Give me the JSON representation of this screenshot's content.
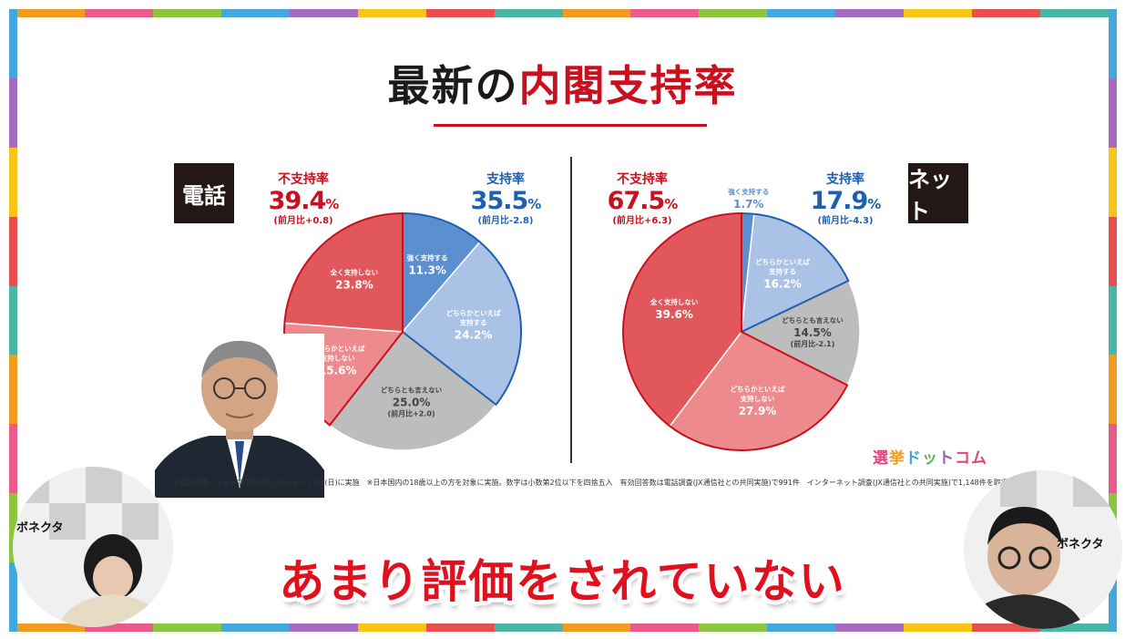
{
  "title": {
    "part1": "最新の",
    "part2": "内閣支持率"
  },
  "colors": {
    "red": "#c8101e",
    "blue": "#1f5fb0",
    "slice_blue_dark": "#5b8fcf",
    "slice_blue_light": "#a9c2e6",
    "slice_gray": "#bdbdbd",
    "slice_red_light": "#ec8a8e",
    "slice_red_dark": "#e2575c",
    "stripes": [
      "#f29c1f",
      "#e85b8a",
      "#8cc63f",
      "#45a8dd",
      "#a66bbf",
      "#f5c518",
      "#e8504f",
      "#4bb6a6"
    ]
  },
  "phone": {
    "badge": "電話",
    "disapprove": {
      "label": "不支持率",
      "value": "39.4",
      "unit": "%",
      "change": "(前月比+0.8)"
    },
    "approve": {
      "label": "支持率",
      "value": "35.5",
      "unit": "%",
      "change": "(前月比-2.8)"
    },
    "slice_labels": [
      {
        "line1": "強く支持する",
        "line2": "",
        "value": "11.3",
        "unit": "%",
        "change": ""
      },
      {
        "line1": "どちらかといえば",
        "line2": "支持する",
        "value": "24.2",
        "unit": "%",
        "change": ""
      },
      {
        "line1": "どちらとも言えない",
        "line2": "",
        "value": "25.0",
        "unit": "%",
        "change": "(前月比+2.0)"
      },
      {
        "line1": "どちらかといえば",
        "line2": "支持しない",
        "value": "15.6",
        "unit": "%",
        "change": ""
      },
      {
        "line1": "全く支持しない",
        "line2": "",
        "value": "23.8",
        "unit": "%",
        "change": ""
      }
    ]
  },
  "net": {
    "badge": "ネット",
    "disapprove": {
      "label": "不支持率",
      "value": "67.5",
      "unit": "%",
      "change": "(前月比+6.3)"
    },
    "approve": {
      "label": "支持率",
      "value": "17.9",
      "unit": "%",
      "change": "(前月比-4.3)"
    },
    "slice_labels": [
      {
        "line1": "強く支持する",
        "line2": "",
        "value": "1.7",
        "unit": "%",
        "change": ""
      },
      {
        "line1": "どちらかといえば",
        "line2": "支持する",
        "value": "16.2",
        "unit": "%",
        "change": ""
      },
      {
        "line1": "どちらとも言えない",
        "line2": "",
        "value": "14.5",
        "unit": "%",
        "change": "(前月比-2.1)"
      },
      {
        "line1": "どちらかといえば",
        "line2": "支持しない",
        "value": "27.9",
        "unit": "%",
        "change": ""
      },
      {
        "line1": "全く支持しない",
        "line2": "",
        "value": "39.6",
        "unit": "%",
        "change": ""
      }
    ]
  },
  "chart_data": [
    {
      "type": "pie",
      "title": "電話",
      "categories": [
        "強く支持する",
        "どちらかといえば支持する",
        "どちらとも言えない",
        "どちらかといえば支持しない",
        "全く支持しない"
      ],
      "values": [
        11.3,
        24.2,
        25.0,
        15.6,
        23.8
      ],
      "colors": [
        "#5b8fcf",
        "#a9c2e6",
        "#bdbdbd",
        "#ec8a8e",
        "#e2575c"
      ]
    },
    {
      "type": "pie",
      "title": "ネット",
      "categories": [
        "強く支持する",
        "どちらかといえば支持する",
        "どちらとも言えない",
        "どちらかといえば支持しない",
        "全く支持しない"
      ],
      "values": [
        1.7,
        16.2,
        14.5,
        27.9,
        39.6
      ],
      "colors": [
        "#5b8fcf",
        "#a9c2e6",
        "#bdbdbd",
        "#ec8a8e",
        "#e2575c"
      ]
    }
  ],
  "note": "※電話調査、ネット調査は7月12日(土)・13日(日)に実施　※日本国内の18歳以上の方を対象に実施。数字は小数第2位以下を四捨五入　有効回答数は電話調査(JX通信社との共同実施)で991件　インターネット調査(JX通信社との共同実施)で1,148件を取得",
  "logo": [
    "選",
    "挙",
    "ド",
    "ッ",
    "ト",
    "コム"
  ],
  "subtitle": "あまり評価をされていない",
  "camera_labels": {
    "left": "ボネクタ",
    "right": "ボネクタ"
  }
}
